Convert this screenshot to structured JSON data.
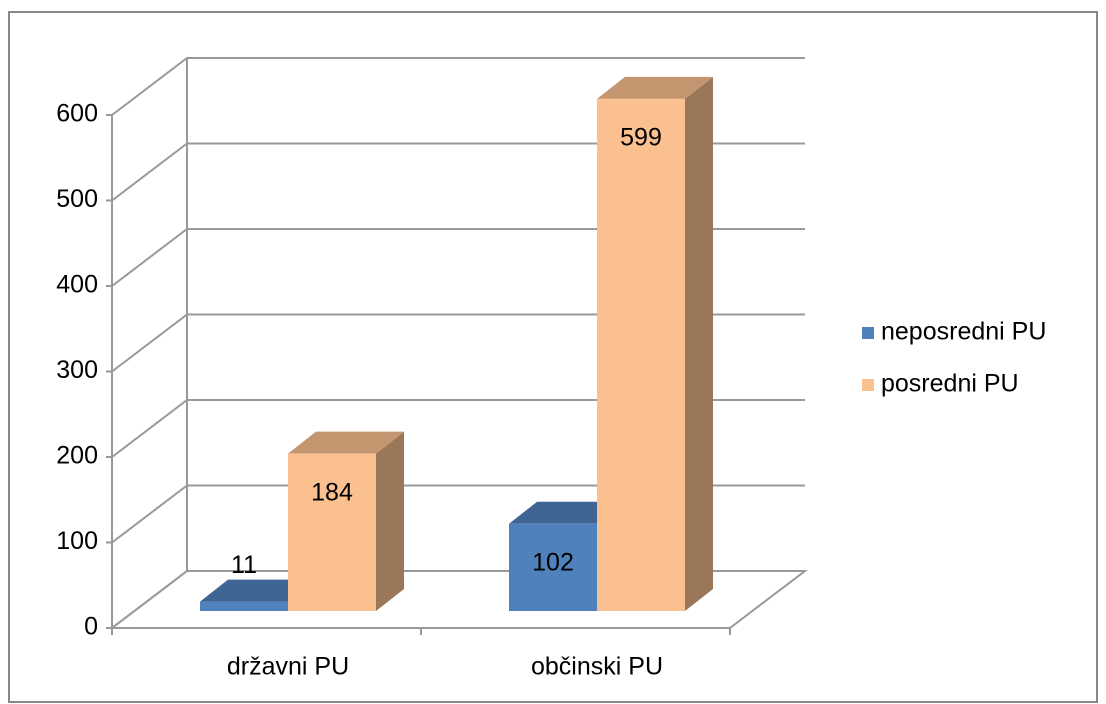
{
  "chart_data": {
    "type": "bar3d",
    "categories": [
      "državni PU",
      "občinski PU"
    ],
    "series": [
      {
        "name": "neposredni PU",
        "color": "#4f81bd",
        "values": [
          11,
          102
        ]
      },
      {
        "name": "posredni PU",
        "color": "#fac090",
        "values": [
          184,
          599
        ]
      }
    ],
    "ylim": [
      0,
      600
    ],
    "yticks": [
      0,
      100,
      200,
      300,
      400,
      500,
      600
    ],
    "grid": true,
    "legend": "right"
  }
}
